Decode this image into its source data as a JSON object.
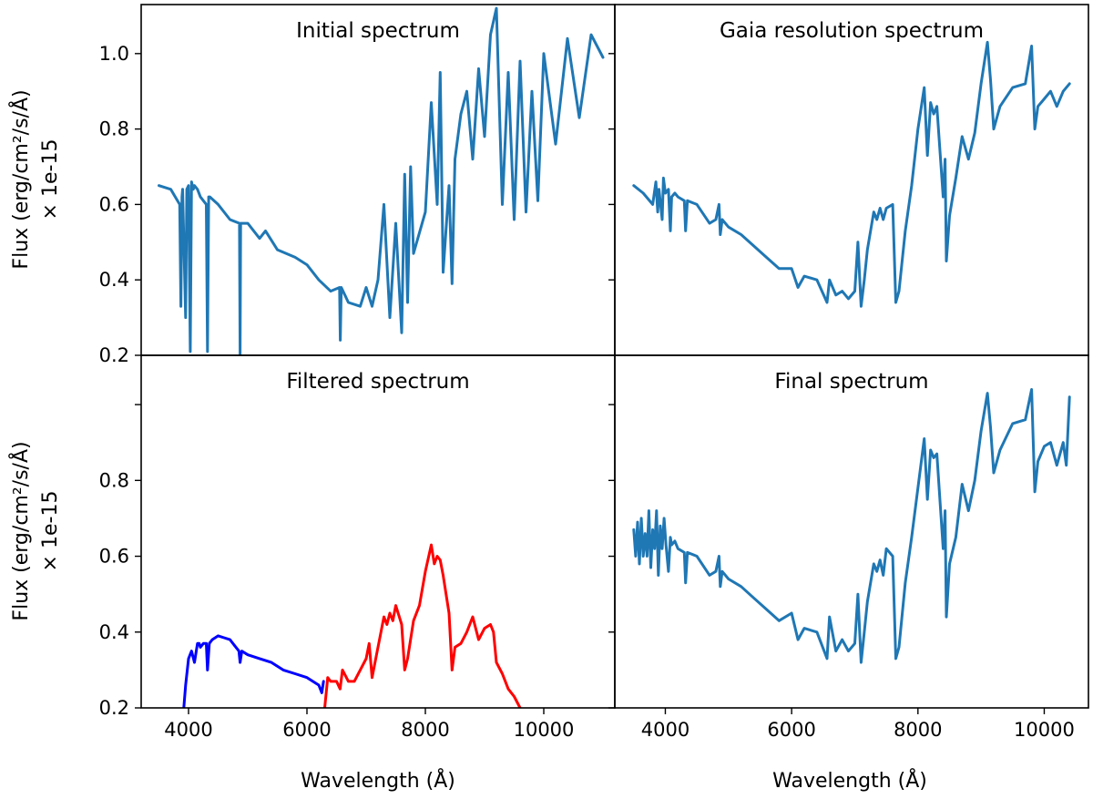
{
  "figure": {
    "ylabel_line1": "Flux (erg/cm²/s/Å)",
    "ylabel_line2": "× 1e-15",
    "xlabel": "Wavelength (Å)",
    "colors": {
      "default": "#1f77b4",
      "blue": "#0000ff",
      "red": "#ff0000"
    }
  },
  "chart_data": [
    {
      "type": "line",
      "title": "Initial spectrum",
      "xlim": [
        3200,
        11200
      ],
      "ylim": [
        0.2,
        1.13
      ],
      "yticks": [
        0.2,
        0.4,
        0.6,
        0.8,
        1.0
      ],
      "yticklabels": [
        "0.2",
        "0.4",
        "0.6",
        "0.8",
        "1.0"
      ],
      "xticks": [],
      "series": [
        {
          "color": "#1f77b4",
          "x": [
            3500,
            3700,
            3850,
            3870,
            3890,
            3900,
            3950,
            3970,
            4000,
            4030,
            4050,
            4080,
            4100,
            4150,
            4200,
            4300,
            4320,
            4340,
            4360,
            4500,
            4700,
            4860,
            4870,
            4880,
            5000,
            5200,
            5300,
            5500,
            5800,
            6000,
            6200,
            6400,
            6550,
            6563,
            6580,
            6700,
            6900,
            7000,
            7100,
            7200,
            7300,
            7400,
            7500,
            7600,
            7650,
            7700,
            7750,
            7800,
            8000,
            8100,
            8200,
            8250,
            8300,
            8400,
            8450,
            8500,
            8600,
            8700,
            8800,
            8900,
            9000,
            9100,
            9200,
            9300,
            9400,
            9500,
            9600,
            9700,
            9800,
            9900,
            10000,
            10200,
            10400,
            10600,
            10800,
            11000
          ],
          "y": [
            0.65,
            0.64,
            0.6,
            0.33,
            0.62,
            0.64,
            0.3,
            0.64,
            0.65,
            0.21,
            0.66,
            0.64,
            0.65,
            0.64,
            0.62,
            0.6,
            0.21,
            0.62,
            0.62,
            0.6,
            0.56,
            0.55,
            0.2,
            0.55,
            0.55,
            0.51,
            0.53,
            0.48,
            0.46,
            0.44,
            0.4,
            0.37,
            0.38,
            0.24,
            0.38,
            0.34,
            0.33,
            0.38,
            0.33,
            0.4,
            0.6,
            0.3,
            0.55,
            0.26,
            0.68,
            0.34,
            0.7,
            0.47,
            0.58,
            0.87,
            0.6,
            0.95,
            0.42,
            0.65,
            0.39,
            0.72,
            0.84,
            0.9,
            0.72,
            0.96,
            0.78,
            1.05,
            1.12,
            0.6,
            0.95,
            0.56,
            0.98,
            0.58,
            0.9,
            0.61,
            1.0,
            0.76,
            1.04,
            0.83,
            1.05,
            0.99
          ]
        }
      ]
    },
    {
      "type": "line",
      "title": "Gaia resolution spectrum",
      "xlim": [
        3200,
        10700
      ],
      "ylim": [
        0.2,
        1.13
      ],
      "yticks": [
        0.2,
        0.4,
        0.6,
        0.8,
        1.0
      ],
      "yticklabels": [],
      "xticks": [],
      "series": [
        {
          "color": "#1f77b4",
          "x": [
            3500,
            3650,
            3800,
            3850,
            3880,
            3900,
            3950,
            3970,
            4000,
            4050,
            4080,
            4100,
            4150,
            4200,
            4300,
            4320,
            4350,
            4500,
            4700,
            4800,
            4850,
            4870,
            4900,
            5000,
            5200,
            5400,
            5600,
            5800,
            6000,
            6100,
            6200,
            6400,
            6560,
            6600,
            6700,
            6800,
            6900,
            7000,
            7050,
            7100,
            7150,
            7200,
            7300,
            7350,
            7400,
            7450,
            7500,
            7600,
            7650,
            7700,
            7800,
            7900,
            8000,
            8100,
            8150,
            8200,
            8250,
            8300,
            8400,
            8430,
            8450,
            8500,
            8600,
            8700,
            8800,
            8900,
            9000,
            9100,
            9150,
            9200,
            9300,
            9500,
            9700,
            9800,
            9850,
            9900,
            10000,
            10100,
            10200,
            10300,
            10400
          ],
          "y": [
            0.65,
            0.63,
            0.6,
            0.66,
            0.58,
            0.64,
            0.56,
            0.67,
            0.63,
            0.64,
            0.53,
            0.62,
            0.63,
            0.62,
            0.61,
            0.53,
            0.61,
            0.6,
            0.55,
            0.56,
            0.6,
            0.52,
            0.56,
            0.54,
            0.52,
            0.49,
            0.46,
            0.43,
            0.43,
            0.38,
            0.41,
            0.4,
            0.34,
            0.4,
            0.36,
            0.37,
            0.35,
            0.37,
            0.5,
            0.33,
            0.4,
            0.48,
            0.58,
            0.56,
            0.59,
            0.56,
            0.59,
            0.6,
            0.34,
            0.37,
            0.53,
            0.65,
            0.8,
            0.91,
            0.73,
            0.87,
            0.84,
            0.86,
            0.62,
            0.72,
            0.45,
            0.57,
            0.67,
            0.78,
            0.72,
            0.79,
            0.92,
            1.03,
            0.93,
            0.8,
            0.86,
            0.91,
            0.92,
            1.02,
            0.8,
            0.86,
            0.88,
            0.9,
            0.86,
            0.9,
            0.92
          ]
        }
      ]
    },
    {
      "type": "line",
      "title": "Filtered spectrum",
      "xlim": [
        3200,
        11200
      ],
      "ylim": [
        0.2,
        1.13
      ],
      "yticks": [
        0.2,
        0.4,
        0.6,
        0.8,
        1.0
      ],
      "yticklabels": [
        "0.2",
        "0.4",
        "0.6",
        "0.8"
      ],
      "xticks": [
        4000,
        6000,
        8000,
        10000
      ],
      "xticklabels": [
        "4000",
        "6000",
        "8000",
        "10000"
      ],
      "series": [
        {
          "color": "#0000ff",
          "x": [
            3920,
            3950,
            4000,
            4050,
            4100,
            4150,
            4180,
            4200,
            4250,
            4300,
            4320,
            4350,
            4400,
            4500,
            4600,
            4700,
            4800,
            4850,
            4870,
            4900,
            5000,
            5200,
            5400,
            5600,
            5800,
            6000,
            6100,
            6200,
            6250,
            6280
          ],
          "y": [
            0.2,
            0.26,
            0.33,
            0.35,
            0.32,
            0.37,
            0.37,
            0.36,
            0.37,
            0.37,
            0.3,
            0.37,
            0.38,
            0.39,
            0.385,
            0.38,
            0.36,
            0.35,
            0.32,
            0.35,
            0.34,
            0.33,
            0.32,
            0.3,
            0.29,
            0.28,
            0.27,
            0.26,
            0.24,
            0.27
          ]
        },
        {
          "color": "#ff0000",
          "x": [
            6300,
            6350,
            6400,
            6500,
            6560,
            6600,
            6700,
            6800,
            6900,
            7000,
            7050,
            7100,
            7200,
            7300,
            7350,
            7400,
            7450,
            7500,
            7600,
            7650,
            7700,
            7800,
            7900,
            8000,
            8100,
            8150,
            8200,
            8250,
            8300,
            8400,
            8450,
            8500,
            8600,
            8700,
            8800,
            8900,
            9000,
            9100,
            9150,
            9200,
            9300,
            9400,
            9500,
            9600
          ],
          "y": [
            0.2,
            0.28,
            0.27,
            0.27,
            0.25,
            0.3,
            0.27,
            0.27,
            0.3,
            0.33,
            0.37,
            0.28,
            0.36,
            0.44,
            0.42,
            0.45,
            0.43,
            0.47,
            0.42,
            0.3,
            0.33,
            0.43,
            0.47,
            0.56,
            0.63,
            0.58,
            0.6,
            0.59,
            0.55,
            0.45,
            0.3,
            0.36,
            0.37,
            0.4,
            0.44,
            0.38,
            0.41,
            0.42,
            0.4,
            0.32,
            0.29,
            0.25,
            0.23,
            0.2
          ]
        }
      ]
    },
    {
      "type": "line",
      "title": "Final spectrum",
      "xlim": [
        3200,
        10700
      ],
      "ylim": [
        0.2,
        1.13
      ],
      "yticks": [
        0.2,
        0.4,
        0.6,
        0.8,
        1.0
      ],
      "yticklabels": [],
      "xticks": [
        4000,
        6000,
        8000,
        10000
      ],
      "xticklabels": [
        "4000",
        "6000",
        "8000",
        "10000"
      ],
      "series": [
        {
          "color": "#1f77b4",
          "x": [
            3500,
            3530,
            3560,
            3590,
            3620,
            3650,
            3680,
            3710,
            3740,
            3770,
            3800,
            3830,
            3860,
            3890,
            3920,
            3950,
            3980,
            4010,
            4050,
            4080,
            4100,
            4150,
            4200,
            4300,
            4320,
            4350,
            4500,
            4700,
            4800,
            4850,
            4870,
            4900,
            5000,
            5200,
            5400,
            5600,
            5800,
            6000,
            6100,
            6200,
            6400,
            6560,
            6600,
            6700,
            6800,
            6900,
            7000,
            7050,
            7100,
            7150,
            7200,
            7300,
            7350,
            7400,
            7450,
            7500,
            7600,
            7650,
            7700,
            7800,
            7900,
            8000,
            8100,
            8150,
            8200,
            8250,
            8300,
            8400,
            8430,
            8450,
            8500,
            8600,
            8700,
            8800,
            8900,
            9000,
            9100,
            9150,
            9200,
            9300,
            9500,
            9700,
            9800,
            9850,
            9900,
            10000,
            10100,
            10200,
            10300,
            10350,
            10400
          ],
          "y": [
            0.67,
            0.6,
            0.69,
            0.58,
            0.7,
            0.6,
            0.66,
            0.6,
            0.72,
            0.57,
            0.67,
            0.62,
            0.72,
            0.55,
            0.68,
            0.62,
            0.7,
            0.63,
            0.56,
            0.65,
            0.63,
            0.64,
            0.62,
            0.61,
            0.53,
            0.61,
            0.6,
            0.55,
            0.56,
            0.6,
            0.52,
            0.56,
            0.54,
            0.52,
            0.49,
            0.46,
            0.43,
            0.45,
            0.38,
            0.41,
            0.4,
            0.33,
            0.44,
            0.35,
            0.38,
            0.35,
            0.37,
            0.5,
            0.32,
            0.4,
            0.48,
            0.58,
            0.56,
            0.59,
            0.55,
            0.62,
            0.6,
            0.33,
            0.36,
            0.53,
            0.65,
            0.78,
            0.91,
            0.75,
            0.88,
            0.86,
            0.87,
            0.62,
            0.72,
            0.44,
            0.58,
            0.65,
            0.79,
            0.72,
            0.8,
            0.93,
            1.03,
            0.94,
            0.82,
            0.88,
            0.95,
            0.96,
            1.04,
            0.77,
            0.85,
            0.89,
            0.9,
            0.84,
            0.9,
            0.84,
            1.02
          ]
        }
      ]
    }
  ]
}
